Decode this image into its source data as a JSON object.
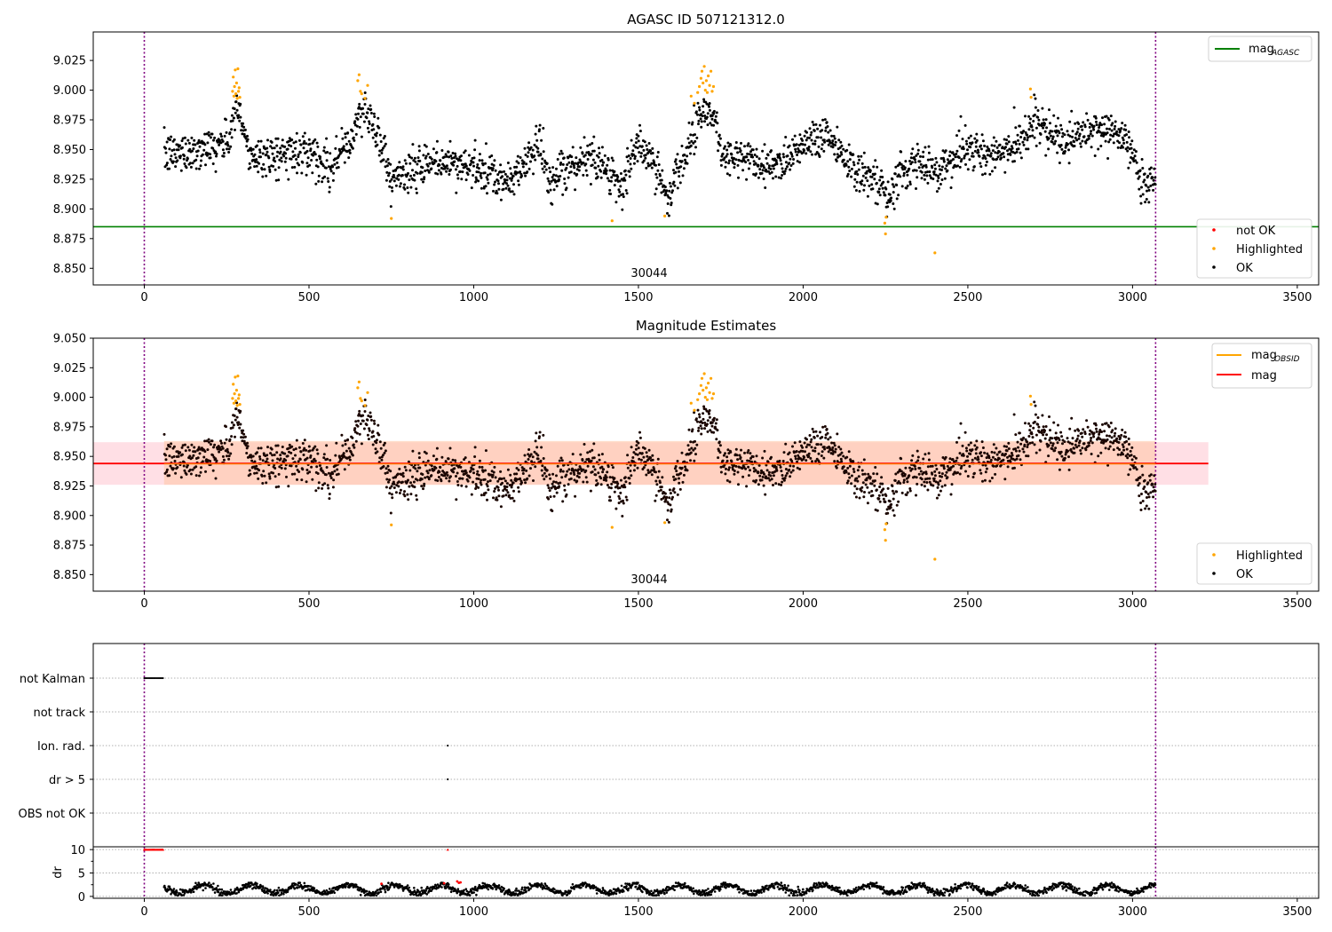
{
  "chart_data": [
    {
      "type": "scatter",
      "title": "AGASC ID 507121312.0",
      "xlabel": "",
      "ylabel": "",
      "xlim": [
        -155,
        3565
      ],
      "ylim": [
        8.836,
        9.049
      ],
      "x_ticks": [
        0,
        500,
        1000,
        1500,
        2000,
        2500,
        3000,
        3500
      ],
      "y_ticks": [
        8.85,
        8.875,
        8.9,
        8.925,
        8.95,
        8.975,
        9.0,
        9.025
      ],
      "y_tick_labels": [
        "8.850",
        "8.875",
        "8.900",
        "8.925",
        "8.950",
        "8.975",
        "9.000",
        "9.025"
      ],
      "grid": false,
      "vlines": [
        0,
        3070
      ],
      "vline_color": "#800080",
      "obsid_label": {
        "text": "30044",
        "x": 1530
      },
      "hline": {
        "name": "mag_AGASC",
        "y": 8.885,
        "color": "#008000"
      },
      "legend_lines": [
        {
          "label_main": "mag",
          "label_sub": "AGASC",
          "color": "#008000",
          "placement": "top-right"
        }
      ],
      "legend_points": [
        {
          "label": "not OK",
          "color": "#ff0000"
        },
        {
          "label": "Highlighted",
          "color": "#ffa500"
        },
        {
          "label": "OK",
          "color": "#000000"
        }
      ],
      "legend_points_placement": "bottom-right",
      "series": [
        {
          "name": "OK",
          "color": "#000000",
          "trend": [
            [
              60,
              8.945
            ],
            [
              250,
              8.955
            ],
            [
              280,
              8.985
            ],
            [
              320,
              8.945
            ],
            [
              400,
              8.945
            ],
            [
              500,
              8.95
            ],
            [
              560,
              8.935
            ],
            [
              620,
              8.955
            ],
            [
              670,
              8.985
            ],
            [
              720,
              8.955
            ],
            [
              750,
              8.925
            ],
            [
              800,
              8.93
            ],
            [
              900,
              8.94
            ],
            [
              1000,
              8.935
            ],
            [
              1100,
              8.92
            ],
            [
              1200,
              8.955
            ],
            [
              1230,
              8.92
            ],
            [
              1300,
              8.935
            ],
            [
              1350,
              8.945
            ],
            [
              1400,
              8.935
            ],
            [
              1450,
              8.92
            ],
            [
              1500,
              8.955
            ],
            [
              1560,
              8.93
            ],
            [
              1590,
              8.91
            ],
            [
              1640,
              8.95
            ],
            [
              1700,
              8.985
            ],
            [
              1730,
              8.975
            ],
            [
              1760,
              8.945
            ],
            [
              1850,
              8.94
            ],
            [
              1900,
              8.935
            ],
            [
              2000,
              8.955
            ],
            [
              2070,
              8.965
            ],
            [
              2120,
              8.945
            ],
            [
              2160,
              8.935
            ],
            [
              2240,
              8.915
            ],
            [
              2260,
              8.905
            ],
            [
              2300,
              8.935
            ],
            [
              2400,
              8.935
            ],
            [
              2460,
              8.94
            ],
            [
              2500,
              8.95
            ],
            [
              2600,
              8.945
            ],
            [
              2650,
              8.955
            ],
            [
              2700,
              8.975
            ],
            [
              2750,
              8.96
            ],
            [
              2800,
              8.955
            ],
            [
              2850,
              8.965
            ],
            [
              2950,
              8.965
            ],
            [
              3000,
              8.945
            ],
            [
              3030,
              8.92
            ],
            [
              3070,
              8.925
            ]
          ]
        },
        {
          "name": "Highlighted",
          "color": "#ffa500",
          "points": [
            [
              268,
              8.999
            ],
            [
              270,
              9.011
            ],
            [
              272,
              8.995
            ],
            [
              274,
              9.003
            ],
            [
              276,
              9.017
            ],
            [
              278,
              8.997
            ],
            [
              280,
              9.006
            ],
            [
              282,
              8.993
            ],
            [
              284,
              9.018
            ],
            [
              286,
              8.999
            ],
            [
              288,
              9.002
            ],
            [
              290,
              8.994
            ],
            [
              648,
              9.008
            ],
            [
              652,
              9.013
            ],
            [
              656,
              8.999
            ],
            [
              660,
              8.997
            ],
            [
              670,
              8.993
            ],
            [
              678,
              9.004
            ],
            [
              750,
              8.892
            ],
            [
              1420,
              8.89
            ],
            [
              1580,
              8.894
            ],
            [
              1660,
              8.995
            ],
            [
              1670,
              8.989
            ],
            [
              1680,
              8.998
            ],
            [
              1685,
              9.003
            ],
            [
              1690,
              9.01
            ],
            [
              1693,
              9.016
            ],
            [
              1696,
              9.006
            ],
            [
              1700,
              9.02
            ],
            [
              1703,
              9.0
            ],
            [
              1706,
              9.008
            ],
            [
              1709,
              8.998
            ],
            [
              1712,
              9.012
            ],
            [
              1716,
              9.004
            ],
            [
              1720,
              9.016
            ],
            [
              1724,
              8.999
            ],
            [
              1728,
              9.003
            ],
            [
              2248,
              8.888
            ],
            [
              2250,
              8.879
            ],
            [
              2252,
              8.893
            ],
            [
              2400,
              8.863
            ],
            [
              2690,
              9.001
            ],
            [
              2692,
              8.994
            ]
          ]
        },
        {
          "name": "not OK",
          "color": "#ff0000",
          "points": []
        }
      ]
    },
    {
      "type": "scatter",
      "title": "Magnitude Estimates",
      "xlabel": "",
      "ylabel": "",
      "xlim": [
        -155,
        3565
      ],
      "ylim": [
        8.836,
        9.05
      ],
      "x_ticks": [
        0,
        500,
        1000,
        1500,
        2000,
        2500,
        3000,
        3500
      ],
      "y_ticks": [
        8.85,
        8.875,
        8.9,
        8.925,
        8.95,
        8.975,
        9.0,
        9.025,
        9.05
      ],
      "y_tick_labels": [
        "8.850",
        "8.875",
        "8.900",
        "8.925",
        "8.950",
        "8.975",
        "9.000",
        "9.025",
        "9.050"
      ],
      "grid": false,
      "vlines": [
        0,
        3070
      ],
      "vline_color": "#800080",
      "obsid_label": {
        "text": "30044",
        "x": 1530
      },
      "hline": {
        "name": "mag",
        "y": 8.944,
        "color": "#ff0000",
        "x_range": [
          -155,
          3230
        ]
      },
      "obsid_mag": {
        "name": "mag_OBSID",
        "y": 8.944,
        "color": "#ffa500",
        "x_range": [
          60,
          3070
        ]
      },
      "band_outer": {
        "y": [
          8.926,
          8.962
        ],
        "x_range": [
          -155,
          3230
        ],
        "color": "#ffc0cb"
      },
      "band_inner": {
        "y": [
          8.926,
          8.963
        ],
        "x_range": [
          60,
          3070
        ],
        "color": "#ffc8a8"
      },
      "legend_lines": [
        {
          "label_main": "mag",
          "label_sub": "OBSID",
          "color": "#ffa500"
        },
        {
          "label_main": "mag",
          "label_sub": "",
          "color": "#ff0000"
        }
      ],
      "legend_points": [
        {
          "label": "Highlighted",
          "color": "#ffa500"
        },
        {
          "label": "OK",
          "color": "#000000"
        }
      ],
      "legend_points_placement": "bottom-right",
      "series_ref": "same data as panel 1"
    },
    {
      "type": "scatter",
      "title": "",
      "xlim": [
        -155,
        3565
      ],
      "x_ticks": [
        0,
        500,
        1000,
        1500,
        2000,
        2500,
        3000,
        3500
      ],
      "vlines": [
        0,
        3070
      ],
      "vline_color": "#800080",
      "flag_categories": [
        "not Kalman",
        "not track",
        "Ion. rad.",
        "dr > 5",
        "OBS not OK"
      ],
      "flag_points": [
        {
          "category": "not Kalman",
          "x_range": [
            0,
            58
          ]
        },
        {
          "category": "Ion. rad.",
          "x": [
            921
          ]
        },
        {
          "category": "dr > 5",
          "x": [
            921
          ]
        }
      ],
      "dr_panel": {
        "ylabel": "dr",
        "ylim": [
          -0.4,
          10.6
        ],
        "y_ticks": [
          0,
          5,
          10
        ],
        "minor_y_ticks": [
          2.5,
          7.5
        ],
        "clipped_value": 10,
        "clipped_x_range": [
          0,
          58
        ],
        "clipped_extra": [
          921
        ],
        "typical_range": [
          0.3,
          2.8
        ],
        "red_points": [
          [
            720,
            2.7
          ],
          [
            950,
            3.2
          ],
          [
            955,
            2.9
          ],
          [
            960,
            3.0
          ],
          [
            910,
            2.8
          ]
        ],
        "series_color": "#000000"
      }
    }
  ]
}
